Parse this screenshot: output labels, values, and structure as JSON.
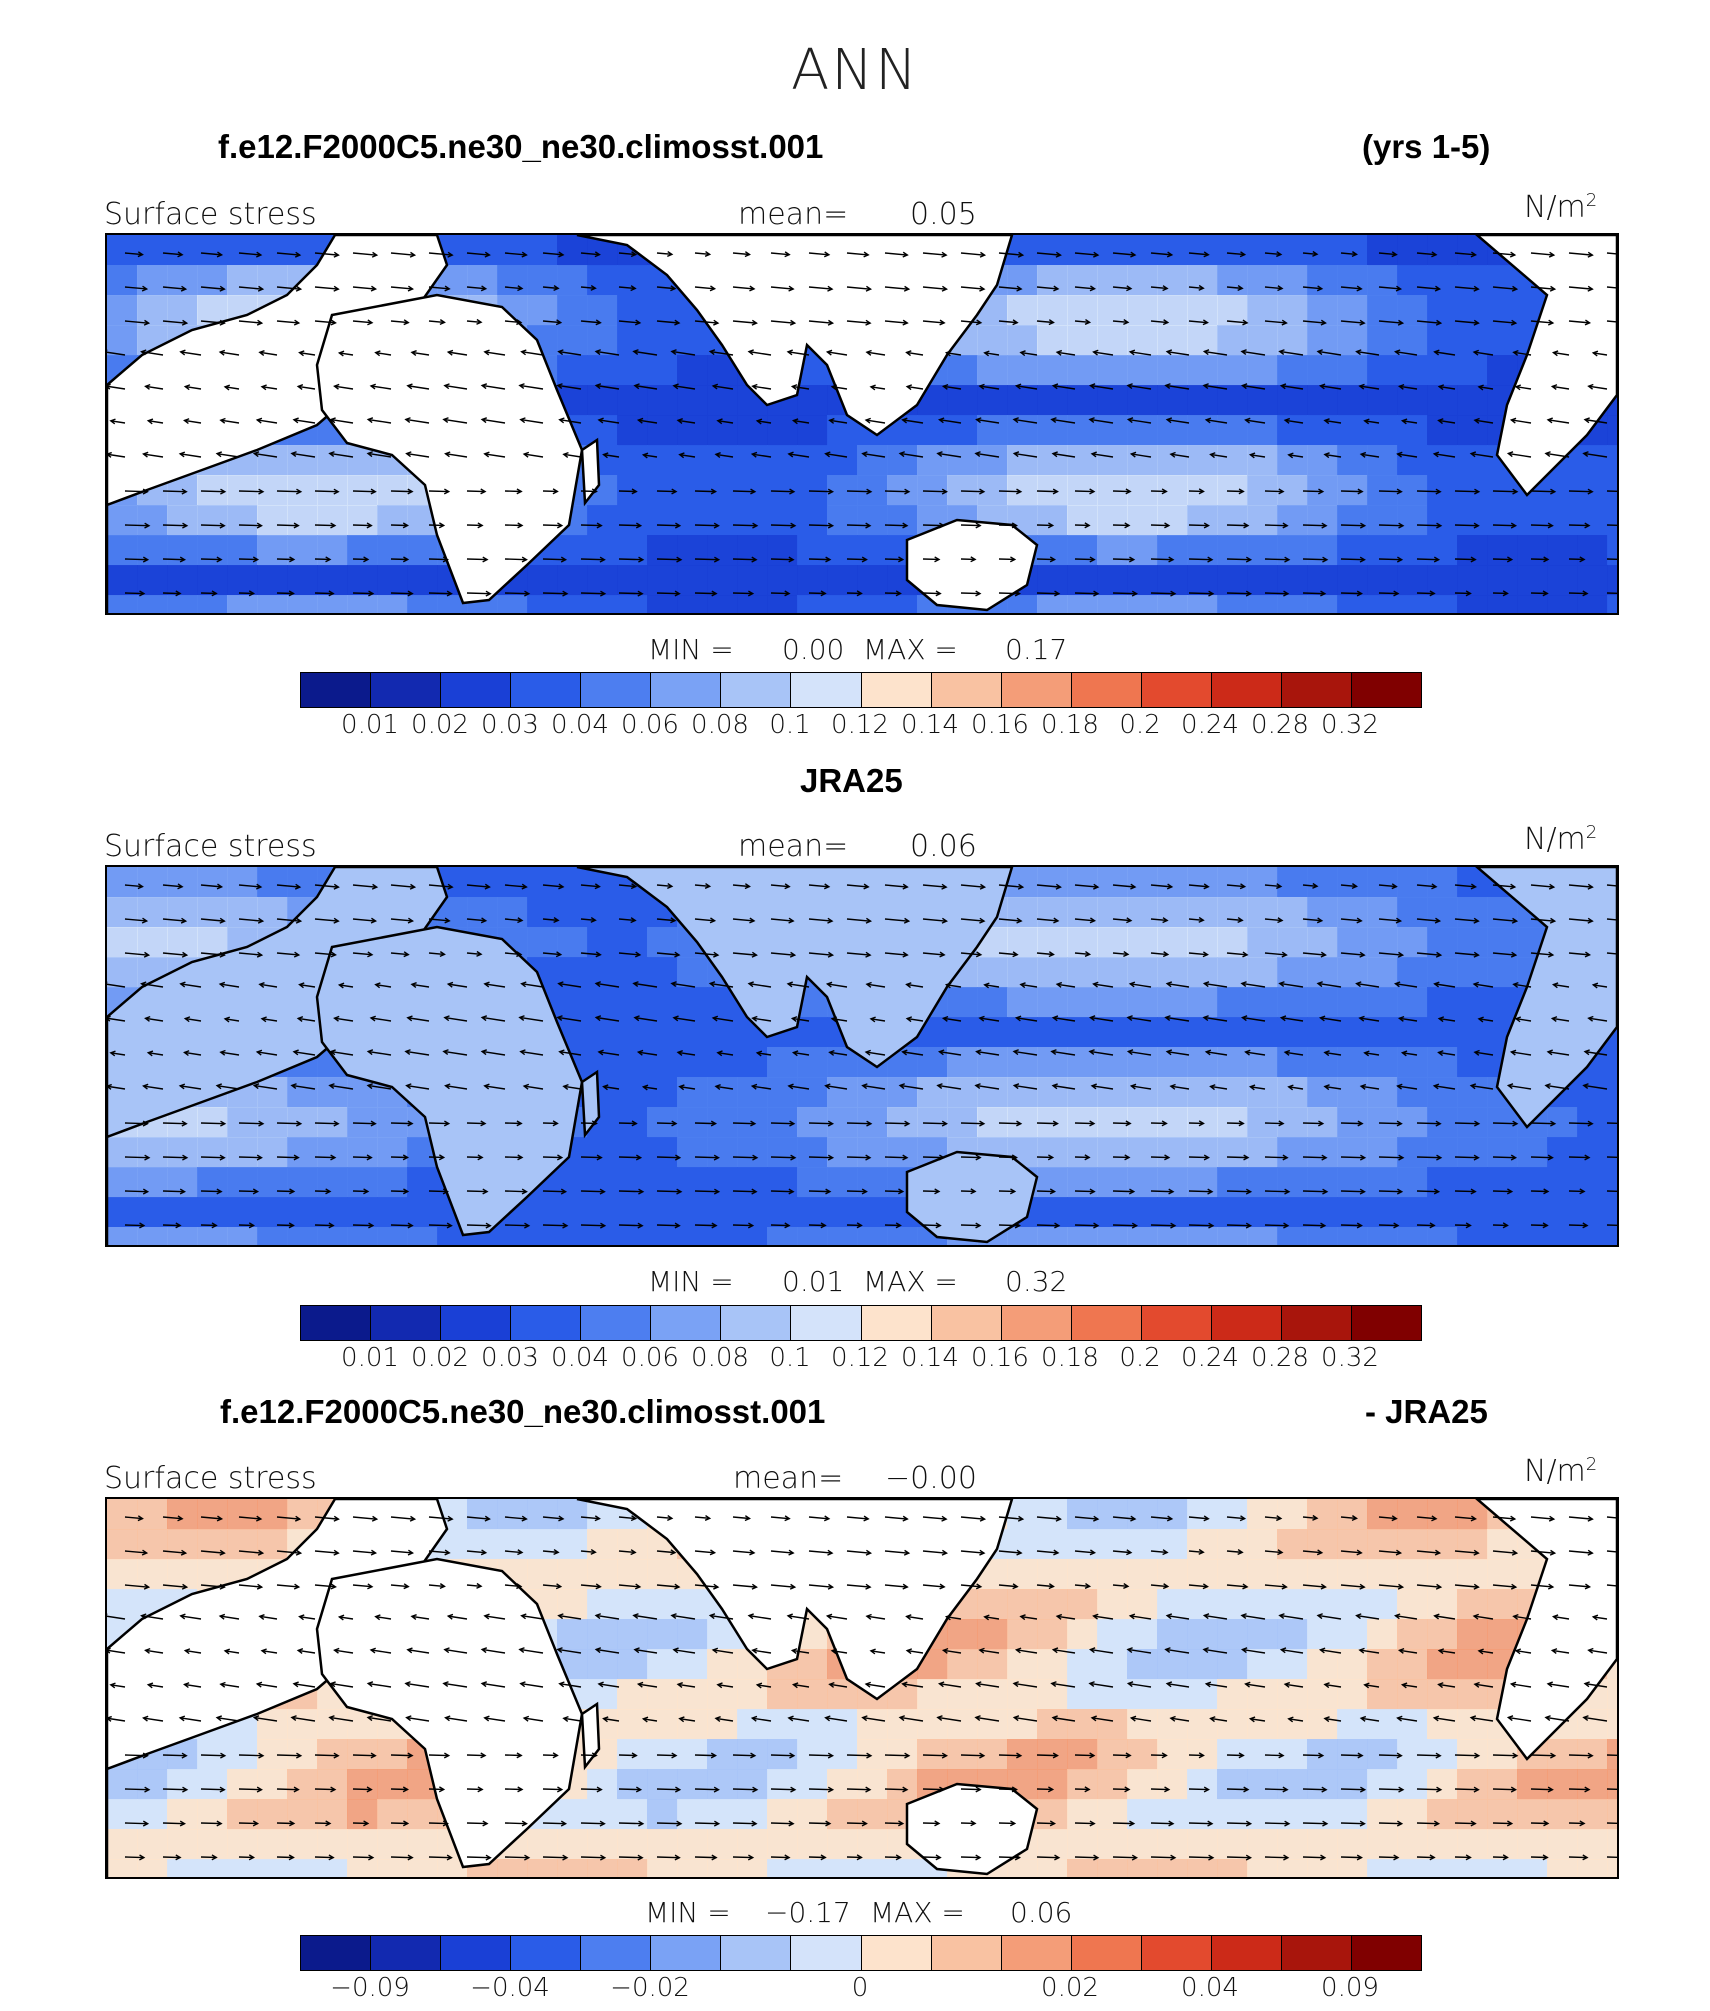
{
  "title": "ANN",
  "colors": {
    "ocean_dark": "#1736c8",
    "land": "#ffffff",
    "scale": [
      "#0b1a8c",
      "#1229b0",
      "#1a40d6",
      "#2a5ce8",
      "#4d7ef0",
      "#7aa2f5",
      "#a8c4f7",
      "#d4e3fa",
      "#fde3cc",
      "#f9c2a2",
      "#f49d78",
      "#ef7650",
      "#e34a2e",
      "#cc2a18",
      "#a8150c",
      "#800000"
    ]
  },
  "chart_data": [
    {
      "type": "heatmap",
      "title": "f.e12.F2000C5.ne30_ne30.climosst.001",
      "subtitle": "(yrs 1-5)",
      "variable": "Surface stress",
      "mean_label": "mean=",
      "mean_value": "0.05",
      "units_base": "N/m",
      "units_exp": "2",
      "min_label": "MIN =",
      "min_value": "0.00",
      "max_label": "MAX =",
      "max_value": "0.17",
      "colorbar_ticks": [
        "0.01",
        "0.02",
        "0.03",
        "0.04",
        "0.06",
        "0.08",
        "0.1",
        "0.12",
        "0.14",
        "0.16",
        "0.18",
        "0.2",
        "0.24",
        "0.28",
        "0.32"
      ]
    },
    {
      "type": "heatmap",
      "title": "JRA25",
      "subtitle": "",
      "variable": "Surface stress",
      "mean_label": "mean=",
      "mean_value": "0.06",
      "units_base": "N/m",
      "units_exp": "2",
      "min_label": "MIN =",
      "min_value": "0.01",
      "max_label": "MAX =",
      "max_value": "0.32",
      "colorbar_ticks": [
        "0.01",
        "0.02",
        "0.03",
        "0.04",
        "0.06",
        "0.08",
        "0.1",
        "0.12",
        "0.14",
        "0.16",
        "0.18",
        "0.2",
        "0.24",
        "0.28",
        "0.32"
      ]
    },
    {
      "type": "heatmap",
      "title": "f.e12.F2000C5.ne30_ne30.climosst.001",
      "subtitle": "- JRA25",
      "variable": "Surface stress",
      "mean_label": "mean=",
      "mean_value": "−0.00",
      "units_base": "N/m",
      "units_exp": "2",
      "min_label": "MIN =",
      "min_value": "−0.17",
      "max_label": "MAX =",
      "max_value": "0.06",
      "colorbar_ticks": [
        "−0.09",
        "−0.04",
        "−0.02",
        "0",
        "0.02",
        "0.04",
        "0.09"
      ]
    }
  ]
}
